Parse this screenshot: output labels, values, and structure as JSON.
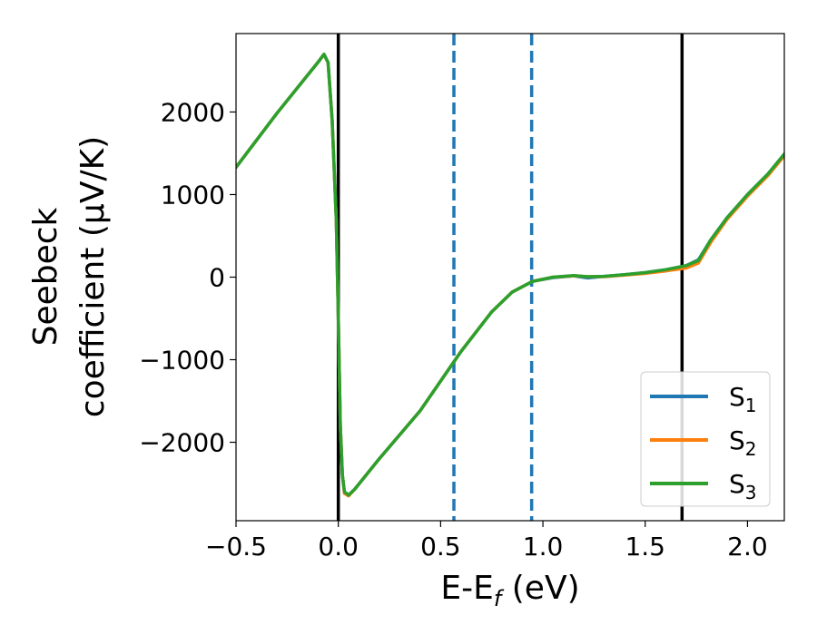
{
  "chart_data": {
    "type": "line",
    "xlabel": {
      "main": "E-E",
      "sub": "f",
      "suffix": " (eV)"
    },
    "ylabel": {
      "line1": "Seebeck",
      "line2": "coefficient  (μV/K)"
    },
    "xlim": [
      -0.5,
      2.18
    ],
    "ylim": [
      -2950,
      2950
    ],
    "xticks": [
      -0.5,
      0.0,
      0.5,
      1.0,
      1.5,
      2.0
    ],
    "xtick_labels": [
      "−0.5",
      "0.0",
      "0.5",
      "1.0",
      "1.5",
      "2.0"
    ],
    "yticks": [
      -2000,
      -1000,
      0,
      1000,
      2000
    ],
    "ytick_labels": [
      "−2000",
      "−1000",
      "0",
      "1000",
      "2000"
    ],
    "grid": false,
    "legend_position": "lower-right",
    "vertical_lines": [
      {
        "x": 0.0,
        "style": "solid",
        "color": "#000000"
      },
      {
        "x": 1.68,
        "style": "solid",
        "color": "#000000"
      },
      {
        "x": 0.565,
        "style": "dashed",
        "color": "#1f77b4"
      },
      {
        "x": 0.945,
        "style": "dashed",
        "color": "#1f77b4"
      }
    ],
    "series": [
      {
        "name": "S",
        "sub": "1",
        "color": "#1f77b4",
        "x": [
          -0.5,
          -0.3,
          -0.1,
          -0.07,
          -0.05,
          -0.03,
          -0.01,
          0.0,
          0.01,
          0.02,
          0.03,
          0.05,
          0.08,
          0.2,
          0.4,
          0.6,
          0.75,
          0.85,
          0.95,
          1.05,
          1.15,
          1.22,
          1.3,
          1.4,
          1.5,
          1.6,
          1.7,
          1.76,
          1.82,
          1.9,
          2.0,
          2.1,
          2.18
        ],
        "y": [
          1330,
          1985,
          2600,
          2700,
          2600,
          1900,
          700,
          -500,
          -1800,
          -2400,
          -2600,
          -2640,
          -2570,
          -2200,
          -1620,
          -900,
          -420,
          -180,
          -50,
          -5,
          15,
          -10,
          10,
          30,
          55,
          90,
          140,
          210,
          450,
          720,
          1000,
          1250,
          1490
        ]
      },
      {
        "name": "S",
        "sub": "2",
        "color": "#ff7f0e",
        "x": [
          -0.5,
          -0.3,
          -0.1,
          -0.07,
          -0.05,
          -0.03,
          -0.01,
          0.0,
          0.01,
          0.02,
          0.03,
          0.05,
          0.08,
          0.2,
          0.4,
          0.6,
          0.75,
          0.85,
          0.95,
          1.05,
          1.15,
          1.22,
          1.3,
          1.4,
          1.5,
          1.6,
          1.7,
          1.76,
          1.82,
          1.9,
          2.0,
          2.1,
          2.18
        ],
        "y": [
          1330,
          1985,
          2600,
          2700,
          2600,
          1900,
          700,
          -500,
          -1800,
          -2400,
          -2620,
          -2650,
          -2570,
          -2200,
          -1620,
          -900,
          -420,
          -180,
          -50,
          0,
          15,
          5,
          5,
          25,
          45,
          75,
          110,
          170,
          420,
          700,
          980,
          1230,
          1470
        ]
      },
      {
        "name": "S",
        "sub": "3",
        "color": "#2ca02c",
        "x": [
          -0.5,
          -0.3,
          -0.1,
          -0.07,
          -0.05,
          -0.03,
          -0.01,
          0.0,
          0.01,
          0.02,
          0.03,
          0.05,
          0.08,
          0.2,
          0.4,
          0.6,
          0.75,
          0.85,
          0.95,
          1.05,
          1.15,
          1.22,
          1.3,
          1.4,
          1.5,
          1.6,
          1.7,
          1.76,
          1.82,
          1.9,
          2.0,
          2.1,
          2.18
        ],
        "y": [
          1330,
          1985,
          2600,
          2700,
          2600,
          1900,
          700,
          -500,
          -1800,
          -2400,
          -2600,
          -2640,
          -2570,
          -2200,
          -1620,
          -900,
          -420,
          -180,
          -50,
          0,
          20,
          5,
          10,
          30,
          55,
          90,
          140,
          200,
          450,
          720,
          1000,
          1250,
          1490
        ]
      }
    ]
  }
}
